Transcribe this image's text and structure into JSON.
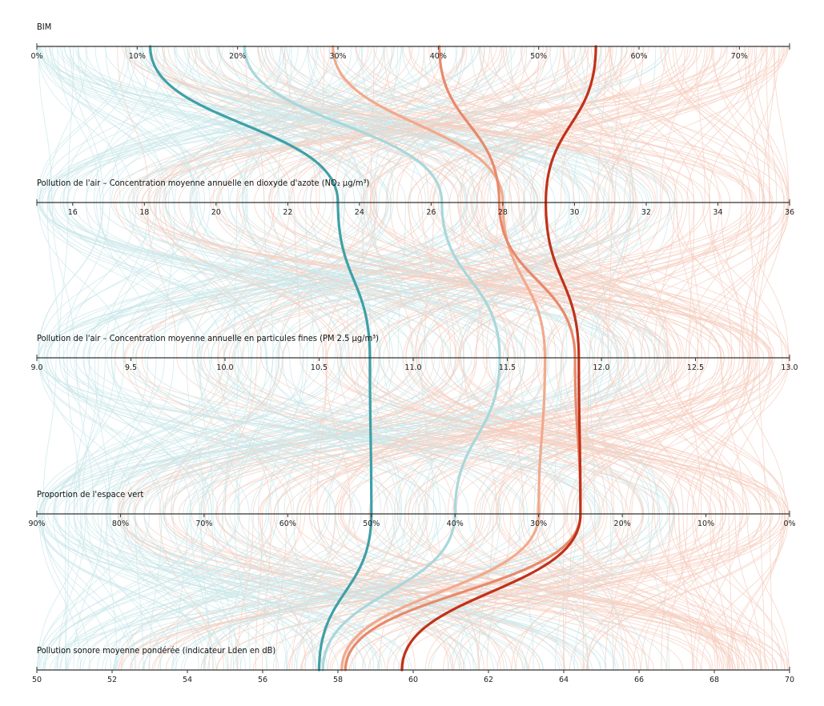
{
  "chart_data": {
    "type": "parallel-coordinates",
    "axes": [
      {
        "key": "bim",
        "title": "BIM",
        "range": [
          0,
          75
        ],
        "reverse": false,
        "ticks": [
          0,
          10,
          20,
          30,
          40,
          50,
          60,
          70
        ],
        "tick_labels": [
          "0%",
          "10%",
          "20%",
          "30%",
          "40%",
          "50%",
          "60%",
          "70%"
        ]
      },
      {
        "key": "no2",
        "title": "Pollution de l'air – Concentration moyenne annuelle en dioxyde d'azote (NO₂ µg/m³)",
        "range": [
          15,
          36
        ],
        "reverse": false,
        "ticks": [
          16,
          18,
          20,
          22,
          24,
          26,
          28,
          30,
          32,
          34,
          36
        ],
        "tick_labels": [
          "16",
          "18",
          "20",
          "22",
          "24",
          "26",
          "28",
          "30",
          "32",
          "34",
          "36"
        ]
      },
      {
        "key": "pm25",
        "title": "Pollution de l'air – Concentration moyenne annuelle en particules fines (PM 2.5 µg/m³)",
        "range": [
          9.0,
          13.0
        ],
        "reverse": false,
        "ticks": [
          9.0,
          9.5,
          10.0,
          10.5,
          11.0,
          11.5,
          12.0,
          12.5,
          13.0
        ],
        "tick_labels": [
          "9.0",
          "9.5",
          "10.0",
          "10.5",
          "11.0",
          "11.5",
          "12.0",
          "12.5",
          "13.0"
        ]
      },
      {
        "key": "green",
        "title": "Proportion de l'espace vert",
        "range": [
          90,
          0
        ],
        "reverse": true,
        "ticks": [
          90,
          80,
          70,
          60,
          50,
          40,
          30,
          20,
          10,
          0
        ],
        "tick_labels": [
          "90%",
          "80%",
          "70%",
          "60%",
          "50%",
          "40%",
          "30%",
          "20%",
          "10%",
          "0%"
        ]
      },
      {
        "key": "noise",
        "title": "Pollution sonore moyenne pondérée (indicateur Lden en dB)",
        "range": [
          50,
          70
        ],
        "reverse": false,
        "ticks": [
          50,
          52,
          54,
          56,
          58,
          60,
          62,
          64,
          66,
          68,
          70
        ],
        "tick_labels": [
          "50",
          "52",
          "54",
          "56",
          "58",
          "60",
          "62",
          "64",
          "66",
          "68",
          "70"
        ]
      }
    ],
    "highlight_series": [
      {
        "color": "#3fa0a6",
        "values": [
          11.3,
          23.4,
          10.77,
          50,
          57.5
        ]
      },
      {
        "color": "#a8d7db",
        "values": [
          20.7,
          26.3,
          11.46,
          40,
          57.6
        ]
      },
      {
        "color": "#f2a98c",
        "values": [
          29.5,
          28.0,
          11.7,
          30,
          58.1
        ]
      },
      {
        "color": "#e8896a",
        "values": [
          40.1,
          27.9,
          11.86,
          25,
          58.2
        ]
      },
      {
        "color": "#c0311a",
        "values": [
          55.7,
          29.2,
          11.88,
          25,
          59.7
        ]
      }
    ],
    "background_series_colors": [
      "#c9e7ea",
      "#f6cdbf"
    ],
    "background_series_count": 320
  }
}
